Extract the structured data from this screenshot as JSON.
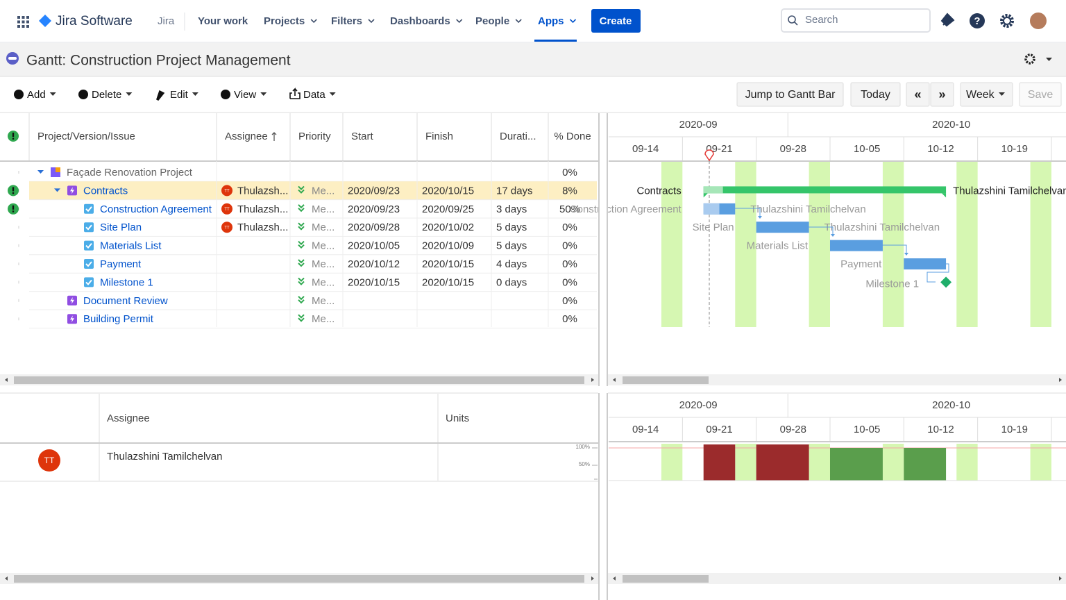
{
  "nav": {
    "product": "Jira Software",
    "app": "Jira",
    "items": [
      "Your work",
      "Projects",
      "Filters",
      "Dashboards",
      "People",
      "Apps"
    ],
    "create": "Create",
    "search": "Search"
  },
  "header": {
    "title": "Gantt:  Construction Project Management"
  },
  "toolbar": {
    "actions": [
      "Add",
      "Delete",
      "Edit",
      "View",
      "Data"
    ],
    "buttons": [
      "Jump to Gantt Bar",
      "Today",
      "«",
      "»",
      "Week",
      "Save"
    ]
  },
  "table": {
    "columns": [
      "Project/Version/Issue",
      "Assignee",
      "Priority",
      "Start",
      "Finish",
      "Durati...",
      "% Done"
    ],
    "rows": [
      {
        "name": "Façade Renovation Project",
        "level": 0,
        "warning": false,
        "selected": false,
        "avatar": null,
        "assignee": null,
        "priority": null,
        "start": null,
        "finish": null,
        "duration": null,
        "done": "0%"
      },
      {
        "name": "Contracts",
        "level": 1,
        "warning": true,
        "selected": true,
        "avatar": "TT",
        "assignee": "Thulazsh...",
        "priority": "Me...",
        "start": "2020/09/23",
        "finish": "2020/10/15",
        "duration": "17 days",
        "done": "8%"
      },
      {
        "name": "Construction Agreement",
        "level": 2,
        "warning": true,
        "selected": false,
        "avatar": "TT",
        "assignee": "Thulazsh...",
        "priority": "Me...",
        "start": "2020/09/23",
        "finish": "2020/09/25",
        "duration": "3 days",
        "done": "50%"
      },
      {
        "name": "Site Plan",
        "level": 2,
        "warning": false,
        "selected": false,
        "avatar": "TT",
        "assignee": "Thulazsh...",
        "priority": "Me...",
        "start": "2020/09/28",
        "finish": "2020/10/02",
        "duration": "5 days",
        "done": "0%"
      },
      {
        "name": "Materials List",
        "level": 2,
        "warning": false,
        "selected": false,
        "avatar": null,
        "assignee": null,
        "priority": "Me...",
        "start": "2020/10/05",
        "finish": "2020/10/09",
        "duration": "5 days",
        "done": "0%"
      },
      {
        "name": "Payment",
        "level": 2,
        "warning": false,
        "selected": false,
        "avatar": null,
        "assignee": null,
        "priority": "Me...",
        "start": "2020/10/12",
        "finish": "2020/10/15",
        "duration": "4 days",
        "done": "0%"
      },
      {
        "name": "Milestone 1",
        "level": 2,
        "warning": false,
        "selected": false,
        "avatar": null,
        "assignee": null,
        "priority": "Me...",
        "start": "2020/10/15",
        "finish": "2020/10/15",
        "duration": "0 days",
        "done": "0%"
      },
      {
        "name": "Document Review",
        "level": 1,
        "warning": false,
        "selected": false,
        "avatar": null,
        "assignee": null,
        "priority": "Me...",
        "start": null,
        "finish": null,
        "duration": null,
        "done": "0%"
      },
      {
        "name": "Building Permit",
        "level": 1,
        "warning": false,
        "selected": false,
        "avatar": null,
        "assignee": null,
        "priority": "Me...",
        "start": null,
        "finish": null,
        "duration": null,
        "done": "0%"
      }
    ]
  },
  "gantt": {
    "months": [
      "2020-09",
      "2020-10"
    ],
    "weeks": [
      "09-14",
      "09-21",
      "09-28",
      "10-05",
      "10-12",
      "10-19"
    ],
    "resource_name": "Thulazshini Tamilchelvan"
  },
  "resources": {
    "columns": [
      "Assignee",
      "Units"
    ],
    "rows": [
      {
        "avatar": "TT",
        "name": "Thulazshini Tamilchelvan"
      }
    ],
    "scale": [
      "100%",
      "50%"
    ]
  }
}
